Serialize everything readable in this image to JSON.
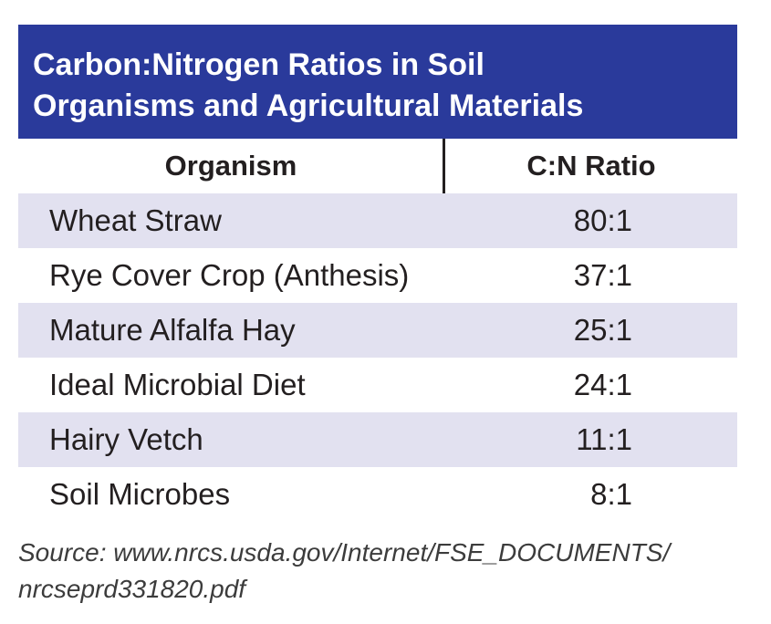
{
  "title": {
    "line1": "Carbon:Nitrogen Ratios in Soil",
    "line2": "Organisms and Agricultural Materials"
  },
  "colors": {
    "title_background": "#2a3a9b",
    "row_shading": "#e2e1f0"
  },
  "table": {
    "headers": {
      "organism": "Organism",
      "ratio": "C:N Ratio"
    },
    "rows": [
      {
        "organism": "Wheat Straw",
        "ratio": "80:1"
      },
      {
        "organism": "Rye Cover Crop (Anthesis)",
        "ratio": "37:1"
      },
      {
        "organism": "Mature Alfalfa Hay",
        "ratio": "25:1"
      },
      {
        "organism": "Ideal Microbial Diet",
        "ratio": "24:1"
      },
      {
        "organism": "Hairy Vetch",
        "ratio": "11:1"
      },
      {
        "organism": "Soil Microbes",
        "ratio": "8:1"
      }
    ]
  },
  "source": {
    "line1": "Source: www.nrcs.usda.gov/Internet/FSE_DOCUMENTS/",
    "line2": "nrcseprd331820.pdf"
  }
}
